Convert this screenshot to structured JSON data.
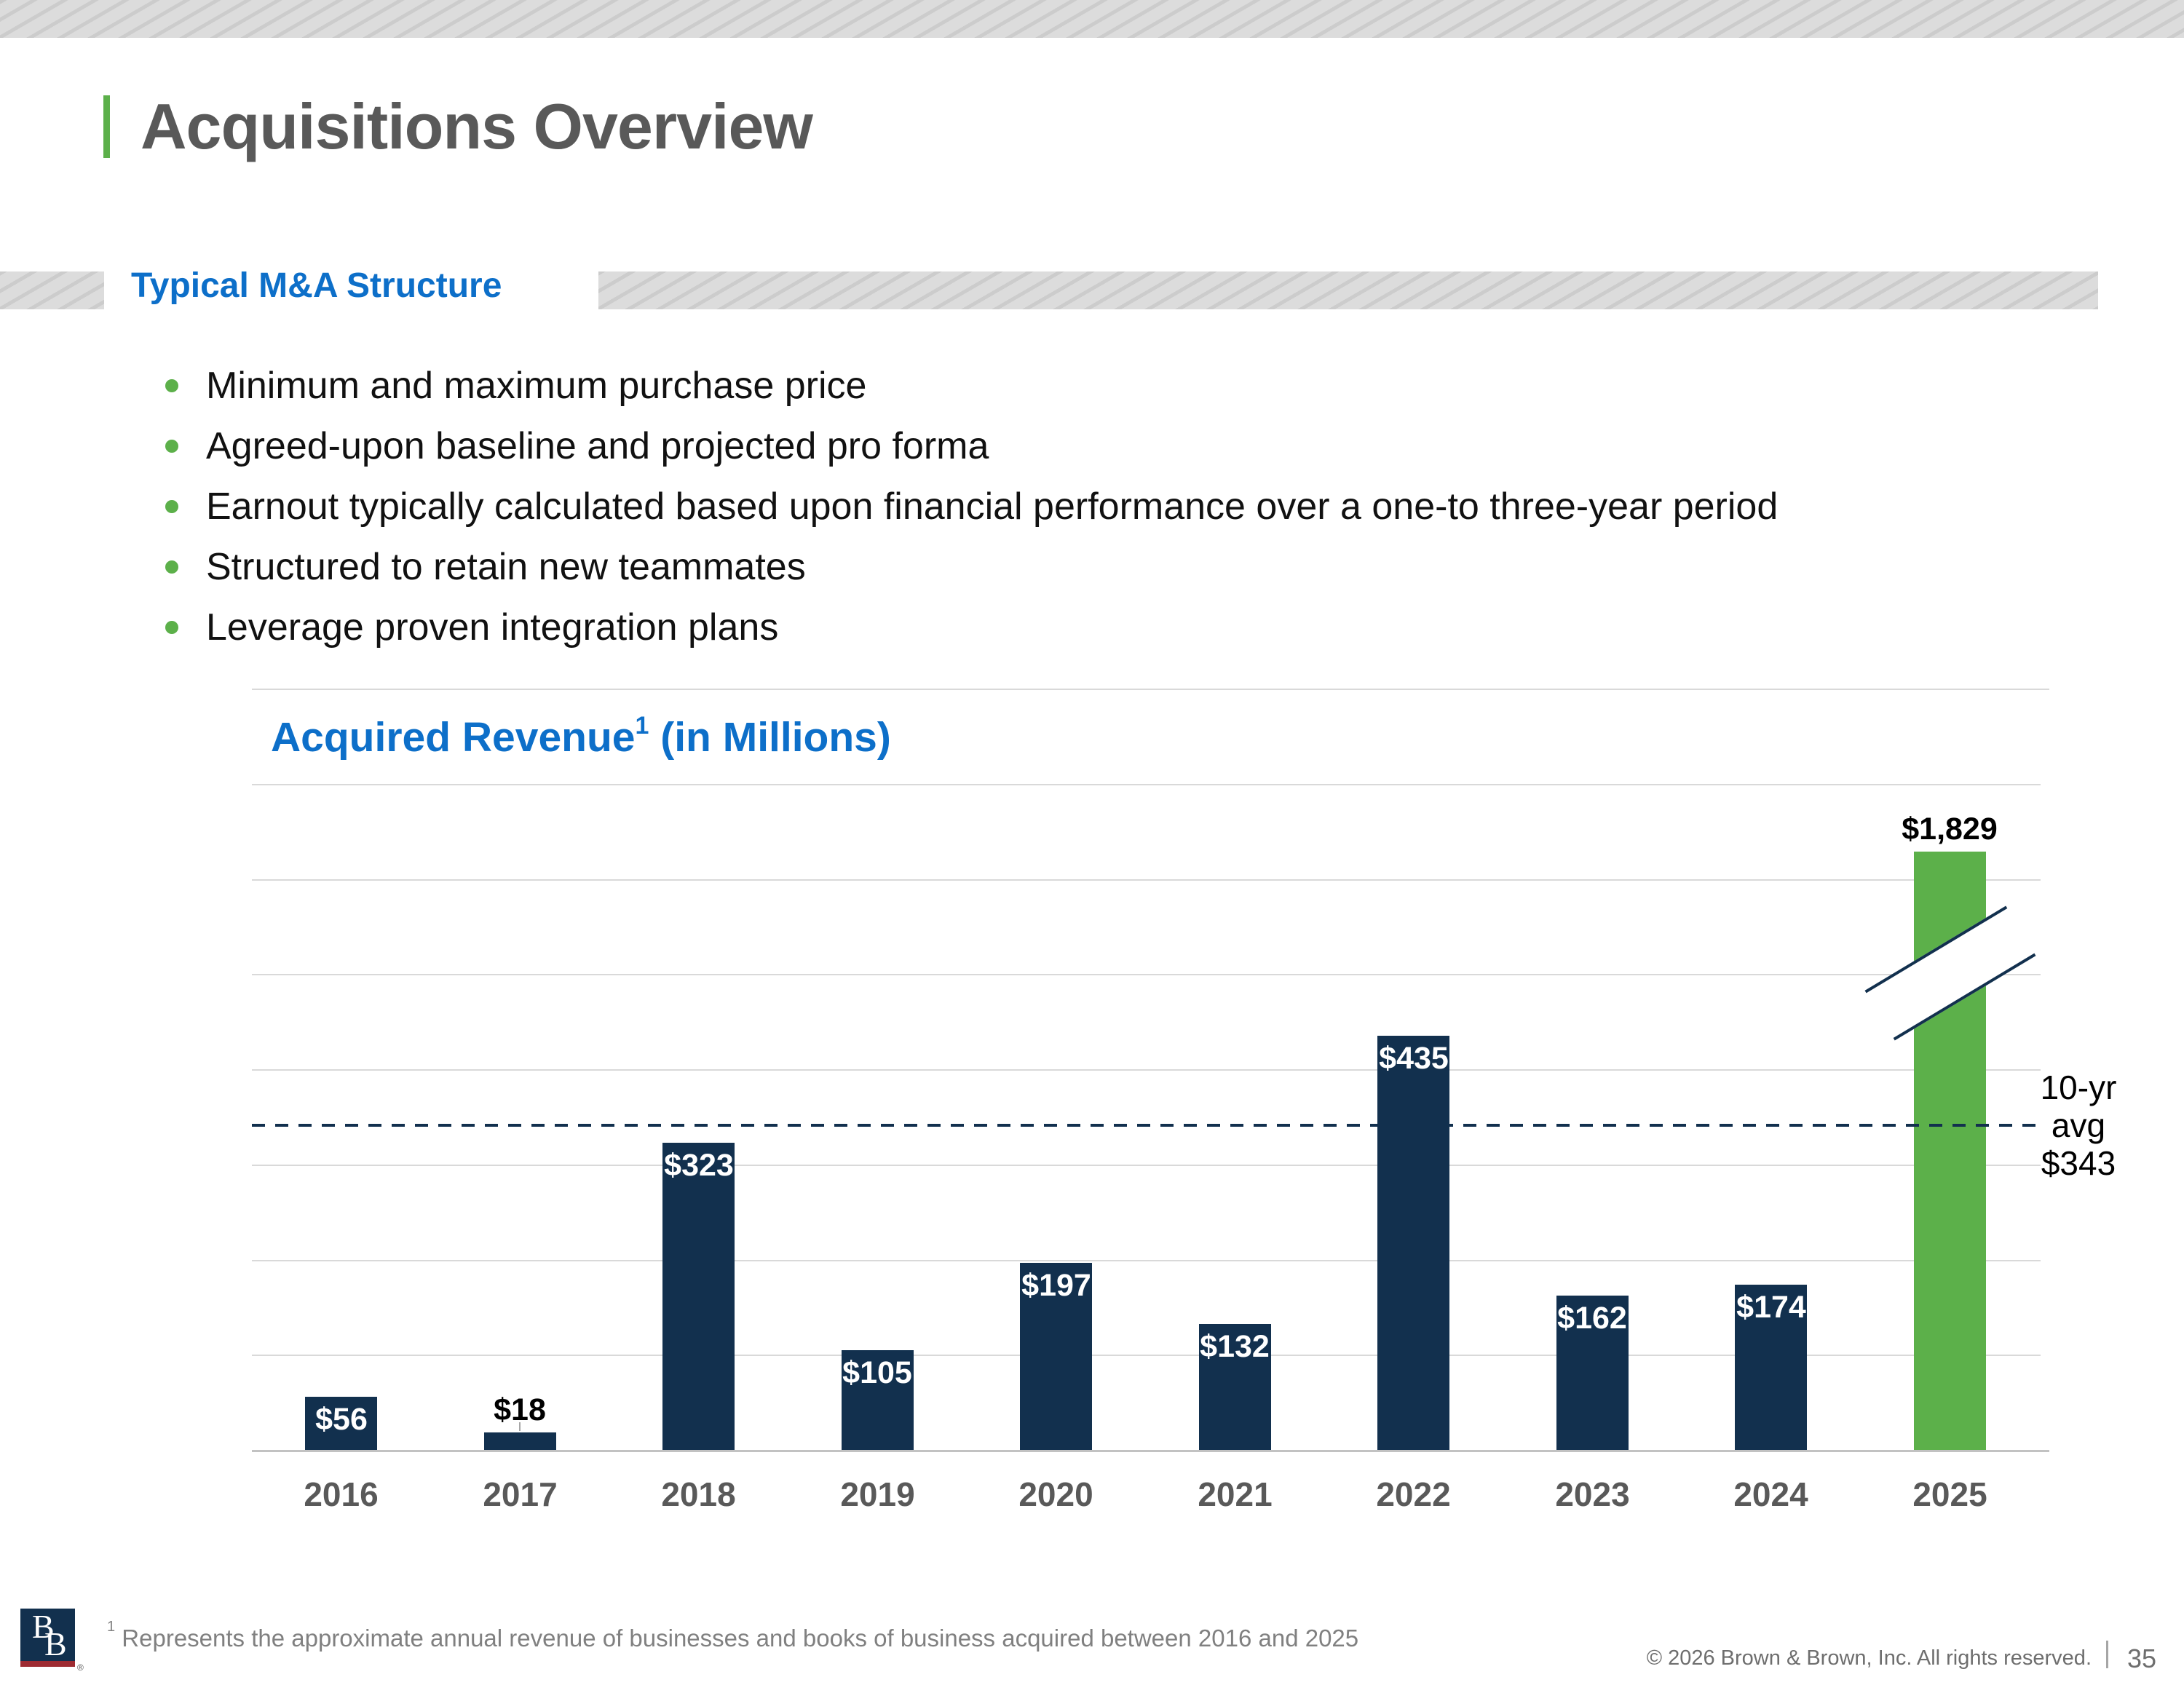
{
  "header": {
    "title": "Acquisitions Overview"
  },
  "section": {
    "title": "Typical M&A Structure"
  },
  "bullets": [
    "Minimum and maximum purchase price",
    "Agreed-upon baseline and projected pro forma",
    "Earnout typically calculated based upon financial performance over a one-to three-year period",
    "Structured to retain new teammates",
    "Leverage proven integration plans"
  ],
  "chart": {
    "title_main": "Acquired Revenue",
    "title_sup": "1",
    "title_rest": " (in Millions)",
    "avg_label_lines": [
      "10-yr",
      "avg",
      "$343"
    ]
  },
  "chart_data": {
    "type": "bar",
    "title": "Acquired Revenue¹ (in Millions)",
    "xlabel": "",
    "ylabel": "",
    "categories": [
      "2016",
      "2017",
      "2018",
      "2019",
      "2020",
      "2021",
      "2022",
      "2023",
      "2024",
      "2025"
    ],
    "values": [
      56,
      18,
      323,
      105,
      197,
      132,
      435,
      162,
      174,
      1829
    ],
    "labels": [
      "$56",
      "$18",
      "$323",
      "$105",
      "$197",
      "$132",
      "$435",
      "$162",
      "$174",
      "$1,829"
    ],
    "gridline_interval": 100,
    "grid": true,
    "legend": false,
    "annotations": {
      "ten_year_avg_value": 343,
      "ten_year_avg_label": "10-yr avg $343",
      "avg_line_style": "dashed",
      "axis_break_category": "2025",
      "highlight_category": "2025"
    }
  },
  "footer": {
    "footnote_sup": "1",
    "footnote_text": " Represents the approximate annual revenue of businesses and books of business acquired between 2016 and 2025",
    "copyright": "© 2026 Brown & Brown, Inc. All rights reserved.",
    "page_number": "35",
    "logo_b1": "B",
    "logo_b2": "B",
    "registered": "®"
  },
  "colors": {
    "navy": "#12304e",
    "green": "#5cb04a",
    "blue": "#0d6fc9",
    "title_gray": "#595959",
    "gridline": "#d9d9d9",
    "footnote_gray": "#808080"
  }
}
